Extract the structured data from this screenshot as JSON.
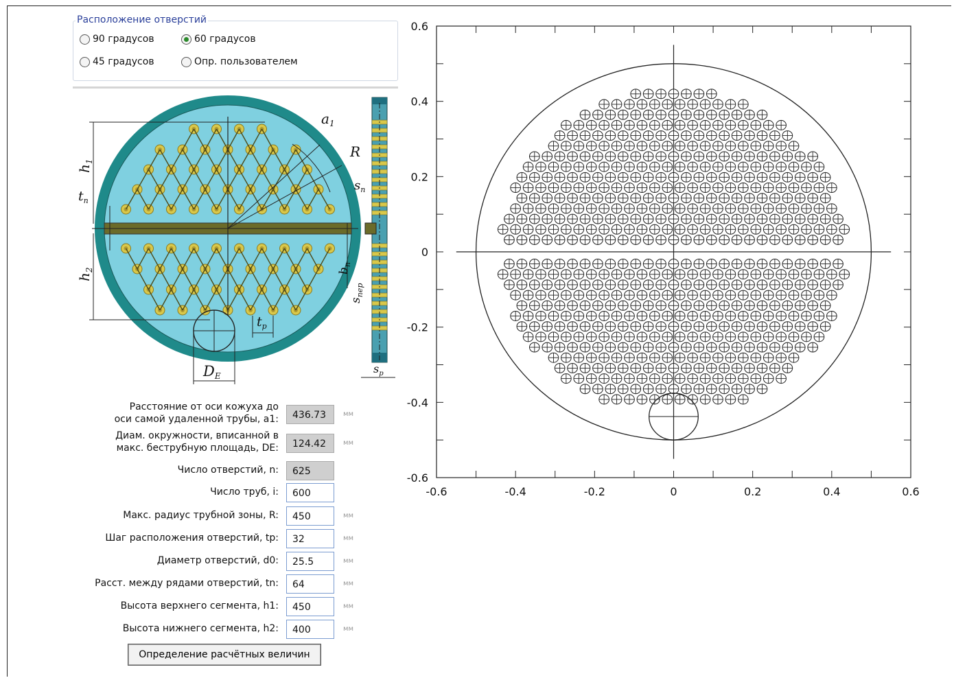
{
  "layout_group": {
    "title": "Расположение отверстий",
    "options": [
      {
        "label": "90 градусов",
        "selected": false
      },
      {
        "label": "60 градусов",
        "selected": true
      },
      {
        "label": "45 градусов",
        "selected": false
      },
      {
        "label": "Опр. пользователем",
        "selected": false
      }
    ]
  },
  "schematic": {
    "labels": {
      "a1": "a",
      "a1_sub": "1",
      "R": "R",
      "h1": "h",
      "h1_sub": "1",
      "h2": "h",
      "h2_sub": "2",
      "tn": "t",
      "tn_sub": "n",
      "sn": "s",
      "sn_sub": "n",
      "bn": "b",
      "bn_sub": "n",
      "snep": "s",
      "snep_sub": "пер",
      "tp": "t",
      "tp_sub": "р",
      "DE": "D",
      "DE_sub": "E",
      "sp": "s",
      "sp_sub": "р"
    },
    "colors": {
      "shell": "#1f8a8a",
      "field": "#7fd0e0",
      "tube": "#d9c84a",
      "band": "#6b6b2a"
    }
  },
  "form": {
    "fields": [
      {
        "label_line1": "Расстояние от оси кожуха до",
        "label_line2": "оси самой удаленной трубы, a1:",
        "value": "436.73",
        "unit": "мм",
        "readonly": true
      },
      {
        "label_line1": "Диам. окружности, вписанной в",
        "label_line2": "макс. беструбную площадь, DE:",
        "value": "124.42",
        "unit": "мм",
        "readonly": true
      },
      {
        "label_line1": "",
        "label_line2": "Число отверстий, n:",
        "value": "625",
        "unit": "",
        "readonly": true
      },
      {
        "label_line1": "",
        "label_line2": "Число труб, i:",
        "value": "600",
        "unit": "",
        "readonly": false
      },
      {
        "label_line1": "",
        "label_line2": "Макс. радиус трубной зоны, R:",
        "value": "450",
        "unit": "мм",
        "readonly": false
      },
      {
        "label_line1": "",
        "label_line2": "Шаг расположения отверстий, tp:",
        "value": "32",
        "unit": "мм",
        "readonly": false
      },
      {
        "label_line1": "",
        "label_line2": "Диаметр отверстий, d0:",
        "value": "25.5",
        "unit": "мм",
        "readonly": false
      },
      {
        "label_line1": "",
        "label_line2": "Расст. между рядами отверстий, tn:",
        "value": "64",
        "unit": "мм",
        "readonly": false
      },
      {
        "label_line1": "",
        "label_line2": "Высота верхнего сегмента, h1:",
        "value": "450",
        "unit": "мм",
        "readonly": false
      },
      {
        "label_line1": "",
        "label_line2": "Высота нижнего сегмента, h2:",
        "value": "400",
        "unit": "мм",
        "readonly": false
      }
    ],
    "calc_button": "Определение расчётных величин"
  },
  "chart_data": {
    "type": "scatter",
    "marker": "circle-with-cross",
    "title": "",
    "xlabel": "",
    "ylabel": "",
    "xlim": [
      -0.6,
      0.6
    ],
    "ylim": [
      -0.6,
      0.6
    ],
    "x_ticks": [
      "-0.6",
      "-0.4",
      "-0.2",
      "0",
      "0.2",
      "0.4",
      "0.6"
    ],
    "y_ticks": [
      "0.6",
      "0.4",
      "0.2",
      "0",
      "-0.2",
      "-0.4",
      "-0.6"
    ],
    "shell_radius": 0.5,
    "tube_zone_radius": 0.45,
    "tube_diameter": 0.0255,
    "row_spacing": 0.0277,
    "col_spacing": 0.032,
    "upper_rows_y": [
      0.032,
      0.0597,
      0.0874,
      0.1151,
      0.1428,
      0.1705,
      0.1982,
      0.2259,
      0.2536,
      0.2813,
      0.309,
      0.3367,
      0.3644,
      0.3921,
      0.4198
    ],
    "lower_rows_y": [
      -0.032,
      -0.0597,
      -0.0874,
      -0.1151,
      -0.1428,
      -0.1705,
      -0.1982,
      -0.2259,
      -0.2536,
      -0.2813,
      -0.309,
      -0.3367,
      -0.3644,
      -0.3921
    ],
    "free_circle": {
      "cx": 0,
      "cy": -0.4378,
      "diameter": 0.12442
    },
    "axes": {
      "grid": false,
      "crosshair_at_origin": true
    }
  }
}
